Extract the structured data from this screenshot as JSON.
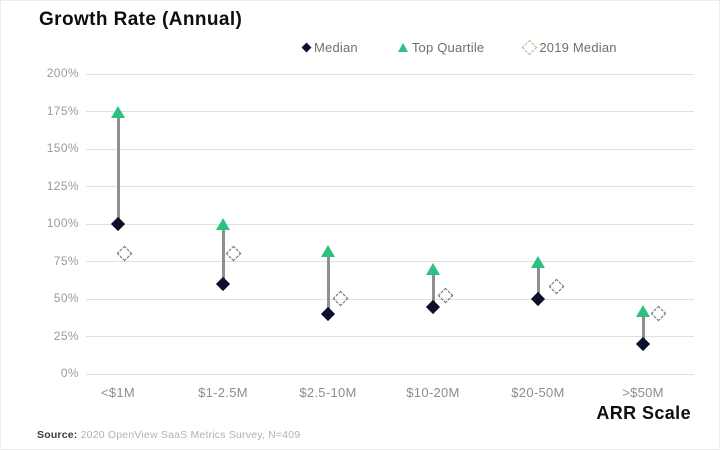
{
  "header": {
    "title": "Growth Rate (Annual)"
  },
  "chart_data": {
    "type": "scatter",
    "title": "Growth Rate (Annual)",
    "xlabel": "ARR Scale",
    "ylabel": "",
    "ylim": [
      0,
      200
    ],
    "ytick_step": 25,
    "grid": "horizontal",
    "legend_position": "top",
    "categories": [
      "<$1M",
      "$1-2.5M",
      "$2.5-10M",
      "$10-20M",
      "$20-50M",
      ">$50M"
    ],
    "yticks": [
      {
        "value": 200,
        "label": "200%"
      },
      {
        "value": 175,
        "label": "175%"
      },
      {
        "value": 150,
        "label": "150%"
      },
      {
        "value": 125,
        "label": "125%"
      },
      {
        "value": 100,
        "label": "100%"
      },
      {
        "value": 75,
        "label": "75%"
      },
      {
        "value": 50,
        "label": "50%"
      },
      {
        "value": 25,
        "label": "25%"
      },
      {
        "value": 0,
        "label": "0%"
      }
    ],
    "series": [
      {
        "name": "Median",
        "marker": "diamond",
        "color": "#0d102d",
        "values": [
          100,
          60,
          40,
          45,
          50,
          20
        ]
      },
      {
        "name": "Top Quartile",
        "marker": "triangle-up",
        "color": "#2cc17e",
        "values": [
          175,
          100,
          82,
          70,
          75,
          42
        ]
      },
      {
        "name": "2019 Median",
        "marker": "dashed-diamond",
        "color": "#6f6f6f",
        "legend_marker_color": "#cdb687",
        "values": [
          80,
          80,
          50,
          52,
          58,
          40
        ]
      }
    ],
    "connector_note": "gray vertical line links Median to Top Quartile in each category"
  },
  "footer": {
    "source_prefix": "Source:",
    "source_text": " 2020 OpenView SaaS Metrics Survey, N=409"
  }
}
